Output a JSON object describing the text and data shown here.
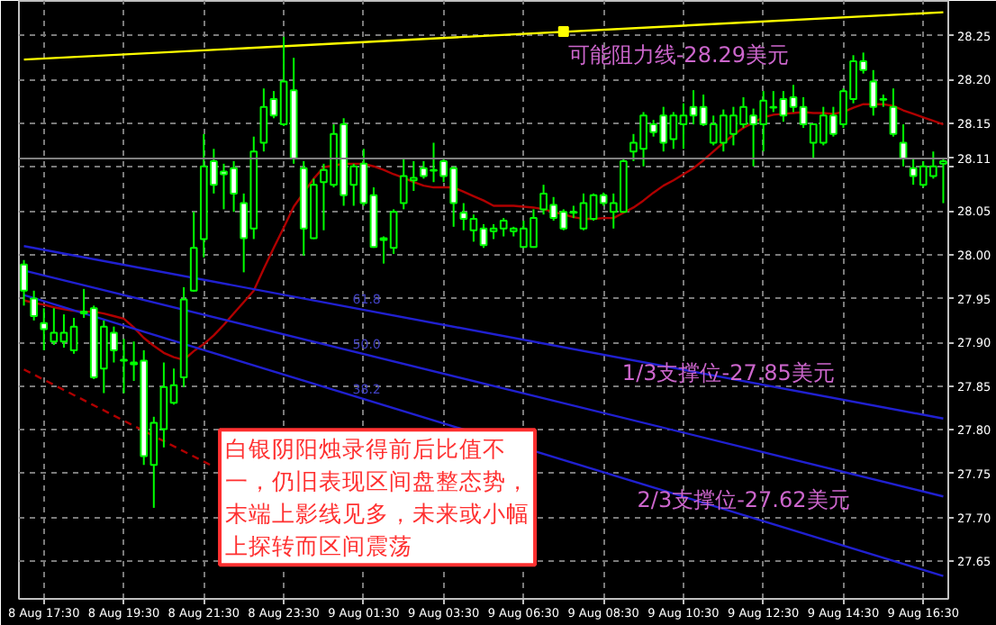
{
  "chart_data": {
    "type": "candlestick",
    "color": "#00ff00",
    "categories": [
      null,
      null,
      "8 Aug 17:30",
      null,
      null,
      null,
      null,
      null,
      null,
      null,
      "8 Aug 19:30",
      null,
      null,
      null,
      null,
      null,
      null,
      null,
      "8 Aug 21:30",
      null,
      null,
      null,
      null,
      null,
      null,
      null,
      "8 Aug 23:30",
      null,
      null,
      null,
      null,
      null,
      null,
      null,
      "9 Aug 01:30",
      null,
      null,
      null,
      null,
      null,
      null,
      null,
      "9 Aug 03:30",
      null,
      null,
      null,
      null,
      null,
      null,
      null,
      "9 Aug 06:30",
      null,
      null,
      null,
      null,
      null,
      null,
      null,
      "9 Aug 08:30",
      null,
      null,
      null,
      null,
      null,
      null,
      null,
      "9 Aug 10:30",
      null,
      null,
      null,
      null,
      null,
      null,
      null,
      "9 Aug 12:30",
      null,
      null,
      null,
      null,
      null,
      null,
      null,
      "9 Aug 14:30",
      null,
      null,
      null,
      null,
      null,
      null,
      null,
      "9 Aug 16:30",
      null,
      null
    ],
    "ohlc": [
      [
        27.989,
        27.994,
        27.942,
        27.959
      ],
      [
        27.95,
        27.959,
        27.925,
        27.93
      ],
      [
        27.922,
        27.939,
        27.891,
        27.915
      ],
      [
        27.901,
        27.939,
        27.897,
        27.911
      ],
      [
        27.901,
        27.932,
        27.894,
        27.911
      ],
      [
        27.891,
        27.928,
        27.887,
        27.918
      ],
      [
        27.935,
        27.961,
        27.928,
        27.933
      ],
      [
        27.939,
        27.942,
        27.858,
        27.86
      ],
      [
        27.87,
        27.925,
        27.842,
        27.918
      ],
      [
        27.911,
        27.918,
        27.877,
        27.891
      ],
      [
        27.88,
        27.904,
        27.842,
        27.879
      ],
      [
        27.877,
        27.901,
        27.856,
        27.875
      ],
      [
        27.879,
        27.891,
        27.76,
        27.77
      ],
      [
        27.76,
        27.815,
        27.711,
        27.808
      ],
      [
        27.801,
        27.877,
        27.78,
        27.849
      ],
      [
        27.831,
        27.87,
        27.829,
        27.851
      ],
      [
        27.86,
        27.963,
        27.849,
        27.949
      ],
      [
        27.959,
        28.049,
        27.958,
        28.008
      ],
      [
        28.018,
        28.138,
        27.997,
        28.101
      ],
      [
        28.107,
        28.121,
        28.07,
        28.08
      ],
      [
        28.095,
        28.104,
        28.052,
        28.092
      ],
      [
        28.099,
        28.107,
        28.049,
        28.07
      ],
      [
        28.059,
        28.07,
        27.98,
        28.019
      ],
      [
        28.03,
        28.135,
        28.018,
        28.118
      ],
      [
        28.128,
        28.19,
        28.118,
        28.169
      ],
      [
        28.178,
        28.187,
        28.156,
        28.159
      ],
      [
        28.149,
        28.249,
        28.147,
        28.198
      ],
      [
        28.188,
        28.225,
        28.104,
        28.11
      ],
      [
        28.099,
        28.107,
        27.999,
        28.03
      ],
      [
        28.019,
        28.087,
        28.018,
        28.08
      ],
      [
        28.083,
        28.104,
        28.028,
        28.097
      ],
      [
        28.08,
        28.149,
        28.077,
        28.138
      ],
      [
        28.149,
        28.156,
        28.056,
        28.068
      ],
      [
        28.08,
        28.104,
        28.056,
        28.101
      ],
      [
        28.104,
        28.121,
        28.056,
        28.059
      ],
      [
        28.068,
        28.077,
        28.008,
        28.009
      ],
      [
        28.019,
        28.021,
        27.99,
        28.017
      ],
      [
        28.008,
        28.052,
        28.001,
        28.049
      ],
      [
        28.059,
        28.111,
        28.052,
        28.09
      ],
      [
        28.085,
        28.107,
        28.073,
        28.088
      ],
      [
        28.099,
        28.107,
        28.087,
        28.09
      ],
      [
        28.096,
        28.128,
        28.083,
        28.097
      ],
      [
        28.107,
        28.111,
        28.083,
        28.09
      ],
      [
        28.099,
        28.101,
        28.032,
        28.059
      ],
      [
        28.048,
        28.059,
        28.028,
        28.041
      ],
      [
        28.028,
        28.046,
        28.015,
        28.041
      ],
      [
        28.03,
        28.035,
        28.008,
        28.011
      ],
      [
        28.027,
        28.035,
        28.018,
        28.03
      ],
      [
        28.03,
        28.042,
        28.021,
        28.039
      ],
      [
        28.027,
        28.032,
        28.021,
        28.03
      ],
      [
        28.009,
        28.039,
        28.008,
        28.03
      ],
      [
        28.009,
        28.052,
        28.008,
        28.042
      ],
      [
        28.052,
        28.08,
        28.046,
        28.07
      ],
      [
        28.057,
        28.066,
        28.039,
        28.042
      ],
      [
        28.049,
        28.052,
        28.028,
        28.03
      ],
      [
        28.048,
        28.056,
        28.042,
        28.049
      ],
      [
        28.03,
        28.07,
        28.028,
        28.059
      ],
      [
        28.041,
        28.07,
        28.039,
        28.068
      ],
      [
        28.068,
        28.071,
        28.056,
        28.059
      ],
      [
        28.049,
        28.07,
        28.03,
        28.059
      ],
      [
        28.049,
        28.109,
        28.048,
        28.107
      ],
      [
        28.118,
        28.138,
        28.107,
        28.128
      ],
      [
        28.121,
        28.163,
        28.101,
        28.159
      ],
      [
        28.149,
        28.154,
        28.135,
        28.14
      ],
      [
        28.159,
        28.169,
        28.118,
        28.128
      ],
      [
        28.132,
        28.163,
        28.121,
        28.159
      ],
      [
        28.149,
        28.173,
        28.121,
        28.159
      ],
      [
        28.169,
        28.188,
        28.149,
        28.159
      ],
      [
        28.169,
        28.183,
        28.147,
        28.149
      ],
      [
        28.128,
        28.159,
        28.125,
        28.149
      ],
      [
        28.128,
        28.166,
        28.118,
        28.159
      ],
      [
        28.138,
        28.169,
        28.125,
        28.159
      ],
      [
        28.149,
        28.18,
        28.145,
        28.169
      ],
      [
        28.159,
        28.167,
        28.101,
        28.149
      ],
      [
        28.149,
        28.187,
        28.118,
        28.176
      ],
      [
        28.168,
        28.187,
        28.163,
        28.169
      ],
      [
        28.178,
        28.187,
        28.152,
        28.159
      ],
      [
        28.18,
        28.194,
        28.163,
        28.169
      ],
      [
        28.169,
        28.18,
        28.145,
        28.149
      ],
      [
        28.128,
        28.15,
        28.11,
        28.149
      ],
      [
        28.128,
        28.169,
        28.125,
        28.159
      ],
      [
        28.159,
        28.169,
        28.135,
        28.138
      ],
      [
        28.149,
        28.19,
        28.145,
        28.187
      ],
      [
        28.178,
        28.228,
        28.173,
        28.221
      ],
      [
        28.221,
        28.231,
        28.207,
        28.211
      ],
      [
        28.198,
        28.211,
        28.159,
        28.169
      ],
      [
        28.178,
        28.183,
        28.169,
        28.177
      ],
      [
        28.169,
        28.19,
        28.135,
        28.138
      ],
      [
        28.128,
        28.149,
        28.101,
        28.11
      ],
      [
        28.099,
        28.11,
        28.08,
        28.09
      ],
      [
        28.08,
        28.107,
        28.077,
        28.101
      ],
      [
        28.09,
        28.118,
        28.087,
        28.101
      ],
      [
        28.104,
        28.109,
        28.059,
        28.107
      ]
    ],
    "colors": [
      "#ffffff",
      "#ffffff",
      "#ffffff",
      "#000000",
      "#000000",
      "#000000",
      "#ffffff",
      "#ffffff",
      "#000000",
      "#ffffff",
      "#ffffff",
      "#ffffff",
      "#ffffff",
      "#000000",
      "#000000",
      "#000000",
      "#000000",
      "#000000",
      "#000000",
      "#ffffff",
      "#ffffff",
      "#ffffff",
      "#ffffff",
      "#000000",
      "#000000",
      "#ffffff",
      "#000000",
      "#ffffff",
      "#ffffff",
      "#000000",
      "#000000",
      "#000000",
      "#ffffff",
      "#000000",
      "#ffffff",
      "#ffffff",
      "#ffffff",
      "#000000",
      "#000000",
      "#000000",
      "#ffffff",
      "#000000",
      "#ffffff",
      "#ffffff",
      "#ffffff",
      "#000000",
      "#ffffff",
      "#000000",
      "#000000",
      "#000000",
      "#000000",
      "#000000",
      "#000000",
      "#ffffff",
      "#ffffff",
      "#000000",
      "#000000",
      "#000000",
      "#ffffff",
      "#000000",
      "#000000",
      "#000000",
      "#000000",
      "#ffffff",
      "#ffffff",
      "#000000",
      "#000000",
      "#ffffff",
      "#ffffff",
      "#000000",
      "#000000",
      "#000000",
      "#000000",
      "#ffffff",
      "#000000",
      "#000000",
      "#ffffff",
      "#ffffff",
      "#ffffff",
      "#000000",
      "#000000",
      "#ffffff",
      "#000000",
      "#000000",
      "#ffffff",
      "#ffffff",
      "#ffffff",
      "#ffffff",
      "#ffffff",
      "#ffffff",
      "#000000",
      "#000000",
      "#000000"
    ],
    "series": [
      {
        "type": "line",
        "color": "#b00000",
        "values": [
          27.948,
          27.945,
          27.943,
          27.94,
          27.938,
          27.936,
          27.935,
          27.935,
          27.933,
          27.93,
          27.927,
          27.917,
          27.905,
          27.896,
          27.888,
          27.883,
          27.88,
          27.89,
          27.898,
          27.908,
          27.92,
          27.933,
          27.946,
          27.959,
          27.984,
          28.008,
          28.031,
          28.055,
          28.071,
          28.087,
          28.1,
          28.102,
          28.104,
          28.104,
          28.104,
          28.101,
          28.097,
          28.092,
          28.088,
          28.083,
          28.079,
          28.077,
          28.077,
          28.077,
          28.072,
          28.067,
          28.062,
          28.056,
          28.056,
          28.056,
          28.055,
          28.054,
          28.052,
          28.049,
          28.046,
          28.043,
          28.041,
          28.041,
          28.042,
          28.042,
          28.048,
          28.054,
          28.062,
          28.071,
          28.079,
          28.085,
          28.092,
          28.099,
          28.108,
          28.118,
          28.128,
          28.137,
          28.145,
          28.151,
          28.157,
          28.16,
          28.161,
          28.162,
          28.163,
          28.162,
          28.162,
          28.161,
          28.163,
          28.168,
          28.172,
          28.172,
          28.172,
          28.17,
          28.165,
          28.161,
          28.157,
          28.153,
          28.149
        ]
      },
      {
        "type": "line",
        "color": "#ffff00",
        "values": [
          28.223,
          null,
          null,
          null,
          null,
          null,
          null,
          null,
          null,
          null,
          null,
          null,
          null,
          null,
          null,
          null,
          null,
          null,
          null,
          null,
          null,
          null,
          null,
          null,
          null,
          null,
          null,
          null,
          null,
          null,
          null,
          null,
          null,
          null,
          null,
          null,
          null,
          null,
          null,
          null,
          null,
          null,
          null,
          null,
          null,
          null,
          null,
          null,
          null,
          null,
          null,
          null,
          null,
          null,
          null,
          null,
          null,
          null,
          null,
          null,
          null,
          null,
          null,
          null,
          null,
          null,
          null,
          null,
          null,
          null,
          null,
          null,
          null,
          null,
          null,
          null,
          null,
          null,
          null,
          null,
          null,
          null,
          null,
          null,
          null,
          null,
          null,
          null,
          null,
          null,
          null,
          null,
          28.277
        ]
      },
      {
        "type": "scatter",
        "color": "#ffff00",
        "marker": "square",
        "values": [
          null,
          null,
          null,
          null,
          null,
          null,
          null,
          null,
          null,
          null,
          null,
          null,
          null,
          null,
          null,
          null,
          null,
          null,
          null,
          null,
          null,
          null,
          null,
          null,
          null,
          null,
          null,
          null,
          null,
          null,
          null,
          null,
          null,
          null,
          null,
          null,
          null,
          null,
          null,
          null,
          null,
          null,
          null,
          null,
          null,
          null,
          null,
          null,
          null,
          null,
          null,
          null,
          null,
          null,
          28.255,
          null,
          null,
          null,
          null,
          null,
          null,
          null,
          null,
          null,
          null,
          null,
          null,
          null,
          null,
          null,
          null,
          null,
          null,
          null,
          null,
          null,
          null,
          null,
          null,
          null,
          null,
          null,
          null,
          null,
          null,
          null,
          null,
          null,
          null,
          null,
          null,
          null,
          null
        ]
      },
      {
        "type": "line",
        "color": "#2020d0",
        "values": [
          28.01,
          null,
          null,
          null,
          null,
          null,
          null,
          null,
          null,
          null,
          null,
          null,
          null,
          null,
          null,
          null,
          null,
          null,
          null,
          null,
          null,
          null,
          null,
          null,
          null,
          null,
          null,
          null,
          null,
          null,
          null,
          null,
          null,
          null,
          null,
          null,
          null,
          null,
          null,
          null,
          null,
          null,
          null,
          null,
          null,
          null,
          null,
          null,
          null,
          null,
          null,
          null,
          null,
          null,
          null,
          null,
          null,
          null,
          null,
          null,
          null,
          null,
          null,
          null,
          null,
          null,
          null,
          null,
          null,
          null,
          null,
          null,
          null,
          null,
          null,
          null,
          null,
          null,
          null,
          null,
          null,
          null,
          null,
          null,
          null,
          null,
          null,
          null,
          null,
          null,
          null,
          null,
          27.813
        ]
      },
      {
        "type": "line",
        "color": "#2020d0",
        "values": [
          27.982,
          null,
          null,
          null,
          null,
          null,
          null,
          null,
          null,
          null,
          null,
          null,
          null,
          null,
          null,
          null,
          null,
          null,
          null,
          null,
          null,
          null,
          null,
          null,
          null,
          null,
          null,
          null,
          null,
          null,
          null,
          null,
          null,
          null,
          null,
          null,
          null,
          null,
          null,
          null,
          null,
          null,
          null,
          null,
          null,
          null,
          null,
          null,
          null,
          null,
          null,
          null,
          null,
          null,
          null,
          null,
          null,
          null,
          null,
          null,
          null,
          null,
          null,
          null,
          null,
          null,
          null,
          null,
          null,
          null,
          null,
          null,
          null,
          null,
          null,
          null,
          null,
          null,
          null,
          null,
          null,
          null,
          null,
          null,
          null,
          null,
          null,
          null,
          null,
          null,
          null,
          null,
          27.724
        ]
      },
      {
        "type": "line",
        "color": "#2020d0",
        "values": [
          27.954,
          null,
          null,
          null,
          null,
          null,
          null,
          null,
          null,
          null,
          null,
          null,
          null,
          null,
          null,
          null,
          null,
          null,
          null,
          null,
          null,
          null,
          null,
          null,
          null,
          null,
          null,
          null,
          null,
          null,
          null,
          null,
          null,
          null,
          null,
          null,
          null,
          null,
          null,
          null,
          null,
          null,
          null,
          null,
          null,
          null,
          null,
          null,
          null,
          null,
          null,
          null,
          null,
          null,
          null,
          null,
          null,
          null,
          null,
          null,
          null,
          null,
          null,
          null,
          null,
          null,
          null,
          null,
          null,
          null,
          null,
          null,
          null,
          null,
          null,
          null,
          null,
          null,
          null,
          null,
          null,
          null,
          null,
          null,
          null,
          null,
          null,
          null,
          null,
          null,
          null,
          null,
          27.633
        ]
      },
      {
        "type": "line",
        "color": "#b00000",
        "line_style": "dashed",
        "values": [
          27.869,
          null,
          null,
          null,
          null,
          null,
          null,
          null,
          null,
          null,
          null,
          null,
          null,
          null,
          null,
          null,
          null,
          null,
          null,
          27.758,
          null,
          null,
          null,
          null,
          null,
          null,
          null,
          null,
          null,
          null,
          null,
          null,
          null,
          null,
          null,
          null,
          null,
          null,
          null,
          null,
          null,
          null,
          null,
          null,
          null,
          null,
          null,
          null,
          null,
          null,
          null,
          null,
          null,
          null,
          null,
          null,
          null,
          null,
          null,
          null,
          null,
          null,
          null,
          null,
          null,
          null,
          null,
          null,
          null,
          null,
          null,
          null,
          null,
          null,
          null,
          null,
          null,
          null,
          null,
          null,
          null,
          null,
          null,
          null,
          null,
          null,
          null,
          null,
          null,
          null,
          null,
          null,
          null
        ]
      }
    ],
    "ref_lines": [
      {
        "axis": "y",
        "value": 28.11,
        "label": "28.11",
        "color": "#808080"
      }
    ],
    "annotations": [
      "可能阻力线-28.29美元",
      "1/3支撑位-27.85美元",
      "2/3支撑位-27.62美元",
      "61.8",
      "50.0",
      "38.2",
      "白银阴阳烛录得前后比值不一，仍旧表现区间盘整态势，末端上影线见多，未来或小幅上探转而区间震荡"
    ],
    "ylim": [
      27.607,
      28.29
    ],
    "yticks": [
      {
        "value": 27.65,
        "label": "27.65"
      },
      {
        "value": 27.7,
        "label": "27.70"
      },
      {
        "value": 27.75,
        "label": "27.75"
      },
      {
        "value": 27.8,
        "label": "27.80"
      },
      {
        "value": 27.85,
        "label": "27.85"
      },
      {
        "value": 27.9,
        "label": "27.90"
      },
      {
        "value": 27.95,
        "label": "27.95"
      },
      {
        "value": 28.0,
        "label": "28.00"
      },
      {
        "value": 28.05,
        "label": "28.05"
      },
      {
        "value": 28.1,
        "label": null
      },
      {
        "value": 28.15,
        "label": "28.15"
      },
      {
        "value": 28.2,
        "label": "28.20"
      },
      {
        "value": 28.25,
        "label": "28.25"
      }
    ],
    "grid": true
  }
}
